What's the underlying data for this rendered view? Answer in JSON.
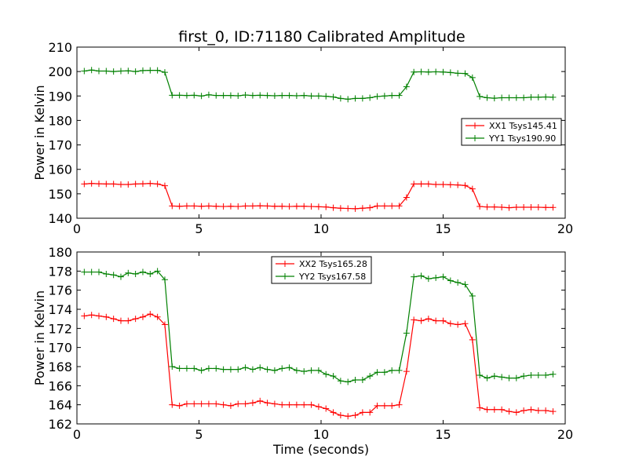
{
  "figure": {
    "title": "first_0, ID:71180 Calibrated Amplitude"
  },
  "chart_data": [
    {
      "type": "line",
      "title": "first_0, ID:71180 Calibrated Amplitude",
      "xlabel": "",
      "ylabel": "Power in Kelvin",
      "xlim": [
        0,
        20
      ],
      "ylim": [
        140,
        210
      ],
      "xticks": [
        0,
        5,
        10,
        15,
        20
      ],
      "yticks": [
        140,
        150,
        160,
        170,
        180,
        190,
        200,
        210
      ],
      "grid": false,
      "legend_position": "center-right",
      "series": [
        {
          "name": "XX1 Tsys145.41",
          "color": "#ff0000",
          "x": [
            0.3,
            0.6,
            0.9,
            1.2,
            1.5,
            1.8,
            2.1,
            2.4,
            2.7,
            3.0,
            3.3,
            3.6,
            3.9,
            4.2,
            4.5,
            4.8,
            5.1,
            5.4,
            5.7,
            6.0,
            6.3,
            6.6,
            6.9,
            7.2,
            7.5,
            7.8,
            8.1,
            8.4,
            8.7,
            9.0,
            9.3,
            9.6,
            9.9,
            10.2,
            10.5,
            10.8,
            11.1,
            11.4,
            11.7,
            12.0,
            12.3,
            12.6,
            12.9,
            13.2,
            13.5,
            13.8,
            14.1,
            14.4,
            14.7,
            15.0,
            15.3,
            15.6,
            15.9,
            16.2,
            16.5,
            16.8,
            17.1,
            17.4,
            17.7,
            18.0,
            18.3,
            18.6,
            18.9,
            19.2,
            19.5
          ],
          "y": [
            154.0,
            154.2,
            154.1,
            154.0,
            154.0,
            153.8,
            153.8,
            154.0,
            154.1,
            154.2,
            154.0,
            153.3,
            145.0,
            144.9,
            145.0,
            145.0,
            144.9,
            145.0,
            144.9,
            144.8,
            144.9,
            144.8,
            145.0,
            145.0,
            145.1,
            145.0,
            144.9,
            144.9,
            144.8,
            144.9,
            144.9,
            144.8,
            144.7,
            144.6,
            144.3,
            144.1,
            144.0,
            143.9,
            144.1,
            144.3,
            145.0,
            145.0,
            145.0,
            145.0,
            148.5,
            154.0,
            154.0,
            154.0,
            153.8,
            153.8,
            153.7,
            153.6,
            153.4,
            152.0,
            144.8,
            144.6,
            144.6,
            144.5,
            144.3,
            144.5,
            144.5,
            144.5,
            144.5,
            144.4,
            144.4
          ]
        },
        {
          "name": "YY1 Tsys190.90",
          "color": "#008000",
          "x": [
            0.3,
            0.6,
            0.9,
            1.2,
            1.5,
            1.8,
            2.1,
            2.4,
            2.7,
            3.0,
            3.3,
            3.6,
            3.9,
            4.2,
            4.5,
            4.8,
            5.1,
            5.4,
            5.7,
            6.0,
            6.3,
            6.6,
            6.9,
            7.2,
            7.5,
            7.8,
            8.1,
            8.4,
            8.7,
            9.0,
            9.3,
            9.6,
            9.9,
            10.2,
            10.5,
            10.8,
            11.1,
            11.4,
            11.7,
            12.0,
            12.3,
            12.6,
            12.9,
            13.2,
            13.5,
            13.8,
            14.1,
            14.4,
            14.7,
            15.0,
            15.3,
            15.6,
            15.9,
            16.2,
            16.5,
            16.8,
            17.1,
            17.4,
            17.7,
            18.0,
            18.3,
            18.6,
            18.9,
            19.2,
            19.5
          ],
          "y": [
            200.2,
            200.6,
            200.2,
            200.2,
            200.0,
            200.2,
            200.3,
            200.0,
            200.4,
            200.5,
            200.5,
            199.7,
            190.3,
            190.3,
            190.2,
            190.3,
            190.0,
            190.5,
            190.2,
            190.2,
            190.2,
            190.1,
            190.4,
            190.2,
            190.3,
            190.2,
            190.1,
            190.2,
            190.2,
            190.1,
            190.2,
            190.0,
            190.0,
            189.9,
            189.6,
            189.0,
            188.7,
            189.0,
            189.0,
            189.3,
            189.8,
            190.0,
            190.2,
            190.2,
            193.8,
            199.8,
            199.9,
            199.8,
            199.9,
            199.8,
            199.6,
            199.3,
            199.2,
            197.5,
            189.8,
            189.3,
            189.1,
            189.3,
            189.3,
            189.3,
            189.3,
            189.5,
            189.5,
            189.6,
            189.5
          ]
        }
      ]
    },
    {
      "type": "line",
      "title": "",
      "xlabel": "Time (seconds)",
      "ylabel": "Power in Kelvin",
      "xlim": [
        0,
        20
      ],
      "ylim": [
        162,
        180
      ],
      "xticks": [
        0,
        5,
        10,
        15,
        20
      ],
      "yticks": [
        162,
        164,
        166,
        168,
        170,
        172,
        174,
        176,
        178,
        180
      ],
      "grid": false,
      "legend_position": "top-center",
      "series": [
        {
          "name": "XX2 Tsys165.28",
          "color": "#ff0000",
          "x": [
            0.3,
            0.6,
            0.9,
            1.2,
            1.5,
            1.8,
            2.1,
            2.4,
            2.7,
            3.0,
            3.3,
            3.6,
            3.9,
            4.2,
            4.5,
            4.8,
            5.1,
            5.4,
            5.7,
            6.0,
            6.3,
            6.6,
            6.9,
            7.2,
            7.5,
            7.8,
            8.1,
            8.4,
            8.7,
            9.0,
            9.3,
            9.6,
            9.9,
            10.2,
            10.5,
            10.8,
            11.1,
            11.4,
            11.7,
            12.0,
            12.3,
            12.6,
            12.9,
            13.2,
            13.5,
            13.8,
            14.1,
            14.4,
            14.7,
            15.0,
            15.3,
            15.6,
            15.9,
            16.2,
            16.5,
            16.8,
            17.1,
            17.4,
            17.7,
            18.0,
            18.3,
            18.6,
            18.9,
            19.2,
            19.5
          ],
          "y": [
            173.3,
            173.4,
            173.3,
            173.2,
            173.0,
            172.8,
            172.8,
            173.0,
            173.2,
            173.5,
            173.2,
            172.4,
            164.0,
            163.9,
            164.1,
            164.1,
            164.1,
            164.1,
            164.1,
            164.0,
            163.9,
            164.1,
            164.1,
            164.2,
            164.4,
            164.2,
            164.1,
            164.0,
            164.0,
            164.0,
            164.0,
            164.0,
            163.8,
            163.6,
            163.2,
            162.9,
            162.8,
            162.9,
            163.2,
            163.2,
            163.9,
            163.9,
            163.9,
            164.0,
            167.5,
            172.9,
            172.8,
            173.0,
            172.8,
            172.8,
            172.5,
            172.4,
            172.5,
            170.8,
            163.7,
            163.5,
            163.5,
            163.5,
            163.3,
            163.2,
            163.4,
            163.5,
            163.4,
            163.4,
            163.3
          ]
        },
        {
          "name": "YY2 Tsys167.58",
          "color": "#008000",
          "x": [
            0.3,
            0.6,
            0.9,
            1.2,
            1.5,
            1.8,
            2.1,
            2.4,
            2.7,
            3.0,
            3.3,
            3.6,
            3.9,
            4.2,
            4.5,
            4.8,
            5.1,
            5.4,
            5.7,
            6.0,
            6.3,
            6.6,
            6.9,
            7.2,
            7.5,
            7.8,
            8.1,
            8.4,
            8.7,
            9.0,
            9.3,
            9.6,
            9.9,
            10.2,
            10.5,
            10.8,
            11.1,
            11.4,
            11.7,
            12.0,
            12.3,
            12.6,
            12.9,
            13.2,
            13.5,
            13.8,
            14.1,
            14.4,
            14.7,
            15.0,
            15.3,
            15.6,
            15.9,
            16.2,
            16.5,
            16.8,
            17.1,
            17.4,
            17.7,
            18.0,
            18.3,
            18.6,
            18.9,
            19.2,
            19.5
          ],
          "y": [
            177.9,
            177.9,
            177.9,
            177.7,
            177.6,
            177.4,
            177.8,
            177.7,
            177.9,
            177.7,
            178.0,
            177.1,
            168.0,
            167.8,
            167.8,
            167.8,
            167.6,
            167.8,
            167.8,
            167.7,
            167.7,
            167.7,
            167.9,
            167.7,
            167.9,
            167.7,
            167.6,
            167.8,
            167.9,
            167.6,
            167.5,
            167.6,
            167.6,
            167.2,
            167.0,
            166.5,
            166.4,
            166.6,
            166.6,
            167.0,
            167.4,
            167.4,
            167.6,
            167.6,
            171.5,
            177.4,
            177.5,
            177.2,
            177.3,
            177.4,
            177.0,
            176.8,
            176.6,
            175.4,
            167.1,
            166.8,
            167.0,
            166.9,
            166.8,
            166.8,
            167.0,
            167.1,
            167.1,
            167.1,
            167.2
          ]
        }
      ]
    }
  ]
}
